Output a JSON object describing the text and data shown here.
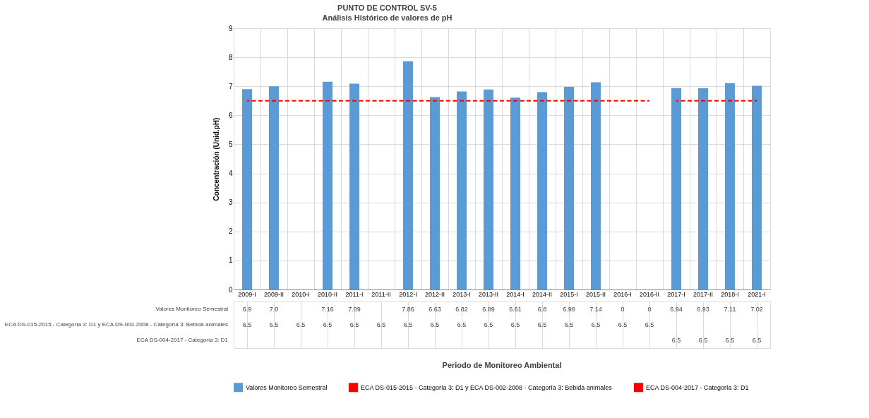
{
  "chart_data": {
    "type": "bar",
    "title": "PUNTO DE CONTROL SV-5",
    "subtitle": "Análisis Histórico de valores de pH",
    "ylabel": "Concentración (Unid.pH)",
    "annotations": [
      "Periodo de Monitoreo Ambiental"
    ],
    "categories": [
      "2009-I",
      "2009-II",
      "2010-I",
      "2010-II",
      "2011-I",
      "2011-II",
      "2012-I",
      "2012-II",
      "2013-I",
      "2013-II",
      "2014-I",
      "2014-II",
      "2015-I",
      "2015-II",
      "2016-I",
      "2016-II",
      "2017-I",
      "2017-II",
      "2018-I",
      "2021-I"
    ],
    "series": [
      {
        "name": "Valores Monitoreo Semestral",
        "color": "#5b9bd5",
        "values": [
          6.9,
          7.0,
          null,
          7.16,
          7.09,
          null,
          7.86,
          6.63,
          6.82,
          6.89,
          6.61,
          6.8,
          6.98,
          7.14,
          0,
          0,
          6.94,
          6.93,
          7.11,
          7.02
        ],
        "value_labels": [
          "6.9",
          "7.0",
          null,
          "7.16",
          "7.09",
          null,
          "7.86",
          "6.63",
          "6.82",
          "6.89",
          "6.61",
          "6.8",
          "6.98",
          "7.14",
          "0",
          "0",
          "6.94",
          "6.93",
          "7.11",
          "7.02"
        ]
      },
      {
        "name": "ECA DS-015-2015 - Categoría 3: D1 y ECA DS-002-2008 - Categoría 3: Bebida animales",
        "type": "line",
        "line_style": "dashed",
        "color": "#ff0000",
        "values": [
          6.5,
          6.5,
          6.5,
          6.5,
          6.5,
          6.5,
          6.5,
          6.5,
          6.5,
          6.5,
          6.5,
          6.5,
          6.5,
          6.5,
          6.5,
          6.5,
          null,
          null,
          null,
          null
        ],
        "value_labels": [
          "6.5",
          "6.5",
          "6.5",
          "6.5",
          "6.5",
          "6.5",
          "6.5",
          "6.5",
          "6.5",
          "6.5",
          "6.5",
          "6.5",
          "6.5",
          "6.5",
          "6.5",
          "6.5",
          null,
          null,
          null,
          null
        ]
      },
      {
        "name": "ECA DS-004-2017 - Categoría 3: D1",
        "type": "line",
        "line_style": "dashed",
        "color": "#ff0000",
        "values": [
          null,
          null,
          null,
          null,
          null,
          null,
          null,
          null,
          null,
          null,
          null,
          null,
          null,
          null,
          null,
          null,
          6.5,
          6.5,
          6.5,
          6.5
        ],
        "value_labels": [
          null,
          null,
          null,
          null,
          null,
          null,
          null,
          null,
          null,
          null,
          null,
          null,
          null,
          null,
          null,
          null,
          "6.5",
          "6.5",
          "6.5",
          "6.5"
        ]
      }
    ],
    "ylim": [
      0,
      9
    ],
    "yticks": [
      0,
      1,
      2,
      3,
      4,
      5,
      6,
      7,
      8,
      9
    ],
    "grid": true,
    "legend": "bottom"
  }
}
